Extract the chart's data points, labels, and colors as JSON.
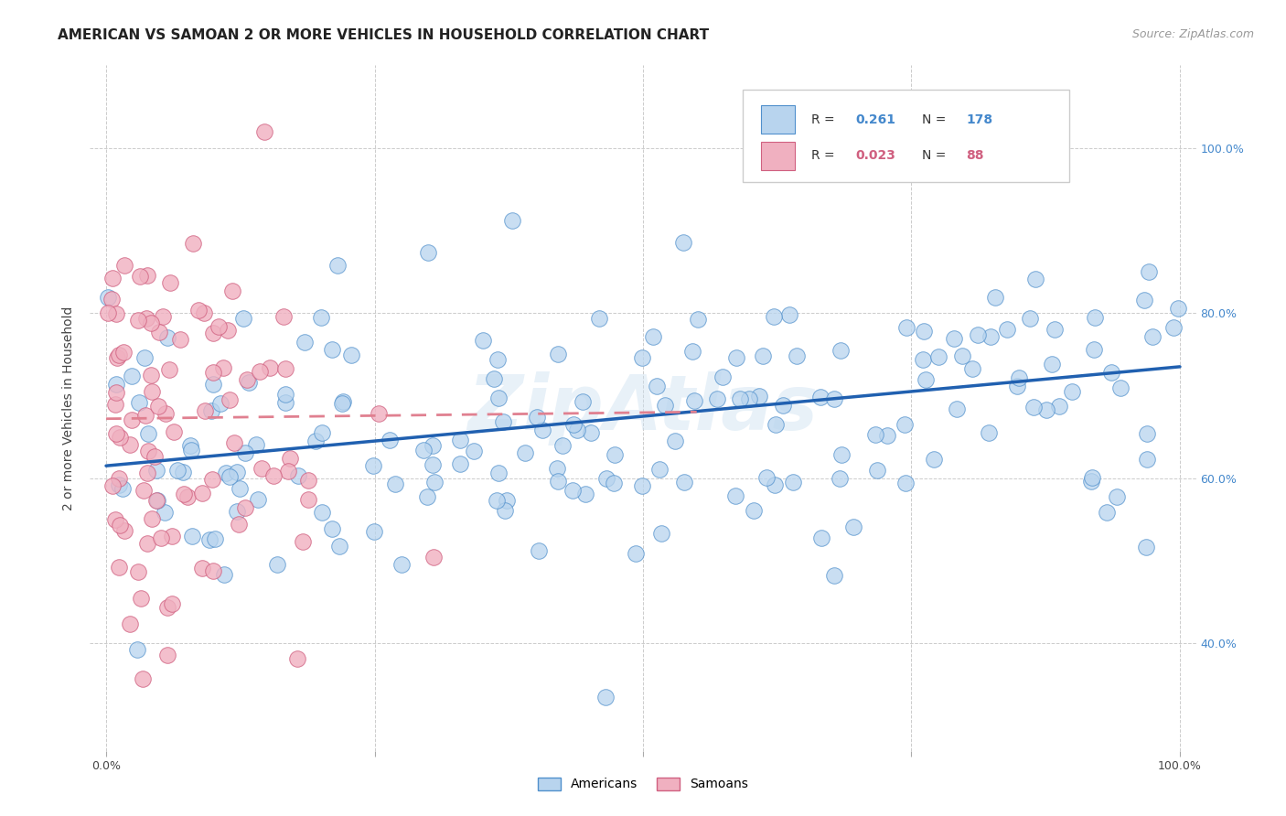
{
  "title": "AMERICAN VS SAMOAN 2 OR MORE VEHICLES IN HOUSEHOLD CORRELATION CHART",
  "source": "Source: ZipAtlas.com",
  "ylabel": "2 or more Vehicles in Household",
  "yticks_labels": [
    "40.0%",
    "60.0%",
    "80.0%",
    "100.0%"
  ],
  "ytick_vals": [
    0.4,
    0.6,
    0.8,
    1.0
  ],
  "xticks_labels": [
    "0.0%",
    "100.0%"
  ],
  "xtick_vals": [
    0.0,
    1.0
  ],
  "legend_text_blue": "R =  0.261   N =  178",
  "legend_text_pink": "R =  0.023   N =   88",
  "legend_r_blue": "0.261",
  "legend_n_blue": "178",
  "legend_r_pink": "0.023",
  "legend_n_pink": "88",
  "americans_fill": "#b8d4ee",
  "americans_edge": "#5090cc",
  "samoans_fill": "#f0b0c0",
  "samoans_edge": "#d06080",
  "americans_line_color": "#2060b0",
  "samoans_line_color": "#e08090",
  "background_color": "#ffffff",
  "grid_color": "#cccccc",
  "watermark": "ZipAtlas",
  "title_fontsize": 11,
  "source_fontsize": 9,
  "axis_label_fontsize": 10,
  "tick_fontsize": 9,
  "legend_fontsize": 10,
  "right_tick_color": "#4488cc"
}
